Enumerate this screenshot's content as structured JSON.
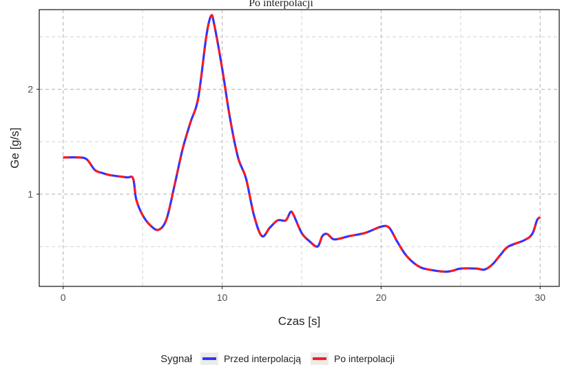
{
  "title": "Po interpolacji",
  "chart_data": {
    "type": "line",
    "title": "Po interpolacji",
    "xlabel": "Czas [s]",
    "ylabel": "Ge [g/s]",
    "xlim": [
      -1.5,
      31.2
    ],
    "ylim": [
      0.12,
      2.76
    ],
    "x_ticks": [
      0,
      10,
      20,
      30
    ],
    "x_tick_labels": [
      "0",
      "10",
      "20",
      "30"
    ],
    "y_ticks": [
      1,
      2
    ],
    "y_tick_labels": [
      "1",
      "2"
    ],
    "grid": true,
    "legend_title": "Sygnał",
    "legend_position": "bottom",
    "series": [
      {
        "name": "Przed interpolacją",
        "color": "#3333ff",
        "style": "solid",
        "x": [
          0,
          1,
          1.5,
          2,
          2.5,
          3,
          4,
          4.4,
          4.6,
          5,
          5.5,
          6,
          6.5,
          7,
          7.5,
          8,
          8.5,
          9,
          9.3,
          9.5,
          10,
          10.5,
          11,
          11.5,
          12,
          12.5,
          13,
          13.5,
          14,
          14.3,
          14.5,
          15,
          15.5,
          16,
          16.3,
          16.6,
          17,
          17.5,
          18,
          19,
          20,
          20.5,
          21,
          21.5,
          22,
          22.5,
          23,
          24,
          24.5,
          25,
          26,
          26.5,
          27,
          27.5,
          28,
          29,
          29.5,
          29.8,
          30
        ],
        "y": [
          1.35,
          1.35,
          1.33,
          1.23,
          1.2,
          1.18,
          1.16,
          1.15,
          0.95,
          0.8,
          0.7,
          0.66,
          0.76,
          1.08,
          1.42,
          1.68,
          1.92,
          2.5,
          2.7,
          2.62,
          2.2,
          1.72,
          1.35,
          1.15,
          0.8,
          0.6,
          0.68,
          0.75,
          0.75,
          0.83,
          0.8,
          0.63,
          0.55,
          0.5,
          0.6,
          0.62,
          0.57,
          0.58,
          0.6,
          0.63,
          0.69,
          0.68,
          0.55,
          0.43,
          0.35,
          0.3,
          0.28,
          0.26,
          0.27,
          0.29,
          0.29,
          0.28,
          0.33,
          0.42,
          0.5,
          0.56,
          0.62,
          0.75,
          0.78
        ]
      },
      {
        "name": "Po interpolacji",
        "color": "#ff1a1a",
        "style": "dashed",
        "x": [
          0,
          1,
          1.5,
          2,
          2.5,
          3,
          4,
          4.4,
          4.6,
          5,
          5.5,
          6,
          6.5,
          7,
          7.5,
          8,
          8.5,
          9,
          9.3,
          9.5,
          10,
          10.5,
          11,
          11.5,
          12,
          12.5,
          13,
          13.5,
          14,
          14.3,
          14.5,
          15,
          15.5,
          16,
          16.3,
          16.6,
          17,
          17.5,
          18,
          19,
          20,
          20.5,
          21,
          21.5,
          22,
          22.5,
          23,
          24,
          24.5,
          25,
          26,
          26.5,
          27,
          27.5,
          28,
          29,
          29.5,
          29.8,
          30
        ],
        "y": [
          1.35,
          1.35,
          1.33,
          1.23,
          1.2,
          1.18,
          1.16,
          1.15,
          0.95,
          0.8,
          0.7,
          0.66,
          0.76,
          1.08,
          1.42,
          1.68,
          1.92,
          2.5,
          2.7,
          2.62,
          2.2,
          1.72,
          1.35,
          1.15,
          0.8,
          0.6,
          0.68,
          0.75,
          0.75,
          0.83,
          0.8,
          0.63,
          0.55,
          0.5,
          0.6,
          0.62,
          0.57,
          0.58,
          0.6,
          0.63,
          0.69,
          0.68,
          0.55,
          0.43,
          0.35,
          0.3,
          0.28,
          0.26,
          0.27,
          0.29,
          0.29,
          0.28,
          0.33,
          0.42,
          0.5,
          0.56,
          0.62,
          0.75,
          0.78
        ]
      }
    ]
  }
}
